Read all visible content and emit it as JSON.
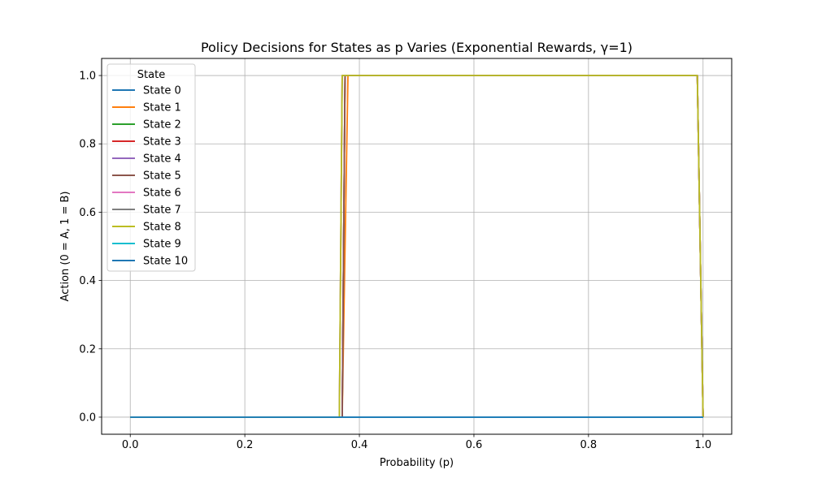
{
  "chart_data": {
    "type": "line",
    "title": "Policy Decisions for States as p Varies (Exponential Rewards, γ=1)",
    "xlabel": "Probability (p)",
    "ylabel": "Action (0 = A, 1 = B)",
    "xlim": [
      -0.05,
      1.05
    ],
    "ylim": [
      -0.05,
      1.05
    ],
    "xticks": [
      0.0,
      0.2,
      0.4,
      0.6,
      0.8,
      1.0
    ],
    "xtick_labels": [
      "0.0",
      "0.2",
      "0.4",
      "0.6",
      "0.8",
      "1.0"
    ],
    "yticks": [
      0.0,
      0.2,
      0.4,
      0.6,
      0.8,
      1.0
    ],
    "ytick_labels": [
      "0.0",
      "0.2",
      "0.4",
      "0.6",
      "0.8",
      "1.0"
    ],
    "grid": true,
    "legend": {
      "title": "State",
      "placement": "upper-left"
    },
    "series": [
      {
        "name": "State 0",
        "color": "#1f77b4",
        "x": [
          0.0,
          1.0
        ],
        "y": [
          0,
          0
        ]
      },
      {
        "name": "State 1",
        "color": "#ff7f0e",
        "x": [
          0.0,
          0.37,
          0.38,
          0.99,
          1.0
        ],
        "y": [
          0,
          0,
          1,
          1,
          0
        ]
      },
      {
        "name": "State 2",
        "color": "#2ca02c",
        "x": [
          0.0,
          0.37,
          0.375,
          0.99,
          1.0
        ],
        "y": [
          0,
          0,
          1,
          1,
          0
        ]
      },
      {
        "name": "State 3",
        "color": "#d62728",
        "x": [
          0.0,
          0.37,
          0.375,
          0.99,
          1.0
        ],
        "y": [
          0,
          0,
          1,
          1,
          0
        ]
      },
      {
        "name": "State 4",
        "color": "#9467bd",
        "x": [
          0.0,
          0.37,
          0.375,
          0.99,
          1.0
        ],
        "y": [
          0,
          0,
          1,
          1,
          0
        ]
      },
      {
        "name": "State 5",
        "color": "#8c564b",
        "x": [
          0.0,
          0.37,
          0.375,
          0.99,
          1.0
        ],
        "y": [
          0,
          0,
          1,
          1,
          0
        ]
      },
      {
        "name": "State 6",
        "color": "#e377c2",
        "x": [
          0.0,
          0.365,
          0.37,
          0.99,
          1.0
        ],
        "y": [
          0,
          0,
          1,
          1,
          0
        ]
      },
      {
        "name": "State 7",
        "color": "#7f7f7f",
        "x": [
          0.0,
          0.365,
          0.37,
          0.99,
          1.0
        ],
        "y": [
          0,
          0,
          1,
          1,
          0
        ]
      },
      {
        "name": "State 8",
        "color": "#bcbd22",
        "x": [
          0.0,
          0.365,
          0.37,
          0.99,
          1.0
        ],
        "y": [
          0,
          0,
          1,
          1,
          0
        ]
      },
      {
        "name": "State 9",
        "color": "#17becf",
        "x": [
          0.0,
          1.0
        ],
        "y": [
          0,
          0
        ]
      },
      {
        "name": "State 10",
        "color": "#1f77b4",
        "x": [
          0.0,
          1.0
        ],
        "y": [
          0,
          0
        ]
      }
    ]
  }
}
